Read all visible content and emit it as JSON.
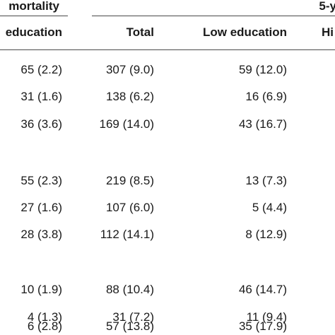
{
  "header": {
    "group_mortality": "mortality",
    "group_5y": "5-y",
    "columns": [
      "education",
      "Total",
      "Low education",
      "Hi"
    ]
  },
  "rows": [
    [
      "65 (2.2)",
      "307 (9.0)",
      "59 (12.0)"
    ],
    [
      "31 (1.6)",
      "138 (6.2)",
      "16 (6.9)"
    ],
    [
      "36 (3.6)",
      "169 (14.0)",
      "43 (16.7)"
    ],
    [
      "55 (2.3)",
      "219 (8.5)",
      "13 (7.3)"
    ],
    [
      "27 (1.6)",
      "107 (6.0)",
      "5 (4.4)"
    ],
    [
      "28 (3.8)",
      "112 (14.1)",
      "8 (12.9)"
    ],
    [
      "10 (1.9)",
      "88 (10.4)",
      "46 (14.7)"
    ],
    [
      "4 (1.3)",
      "31 (7.2)",
      "11 (9.4)"
    ],
    [
      "6 (2.8)",
      "57 (13.8)",
      "35 (17.9)"
    ]
  ]
}
